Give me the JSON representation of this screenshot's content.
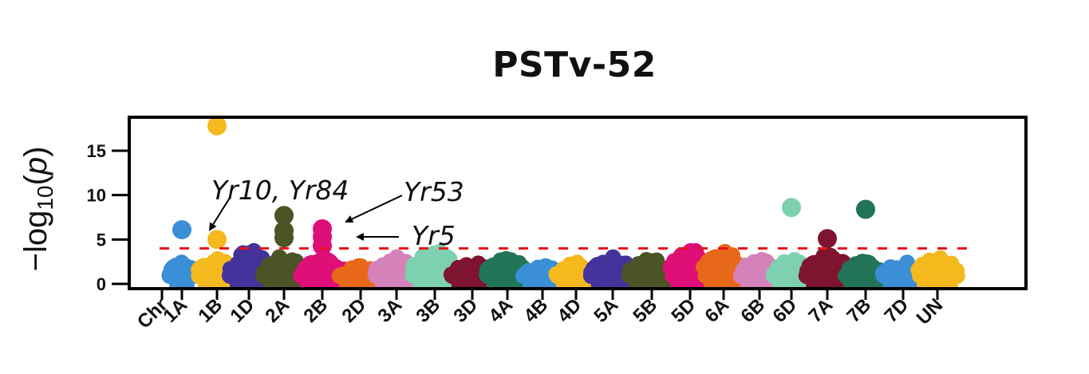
{
  "chart_data": {
    "type": "scatter",
    "subtype": "manhattan",
    "title": "PSTv-52",
    "xlabel": "",
    "ylabel": "-log10(p)",
    "ylim": [
      0,
      18.5
    ],
    "yticks": [
      0,
      5,
      10,
      15
    ],
    "threshold": 4.0,
    "threshold_color": "#e8141c",
    "grid": false,
    "legend": null,
    "x_tick_labels": [
      "Chr",
      "1A",
      "1B",
      "1D",
      "2A",
      "2B",
      "2D",
      "3A",
      "3B",
      "3D",
      "4A",
      "4B",
      "4D",
      "5A",
      "5B",
      "5D",
      "6A",
      "6B",
      "6D",
      "7A",
      "7B",
      "7D",
      "UN"
    ],
    "series": [
      {
        "name": "1A",
        "color": "#3a8fd6",
        "max_bulk": 2.4,
        "outliers": [
          6.1
        ]
      },
      {
        "name": "1B",
        "color": "#f5b91e",
        "max_bulk": 2.8,
        "outliers": [
          5.0,
          17.8
        ]
      },
      {
        "name": "1D",
        "color": "#44339a",
        "max_bulk": 3.7,
        "outliers": []
      },
      {
        "name": "2A",
        "color": "#4a5424",
        "max_bulk": 3.0,
        "outliers": [
          5.2,
          6.0,
          7.7
        ]
      },
      {
        "name": "2B",
        "color": "#df0f78",
        "max_bulk": 2.8,
        "outliers": [
          4.3,
          5.3,
          6.2
        ]
      },
      {
        "name": "2D",
        "color": "#e8681a",
        "max_bulk": 2.0,
        "outliers": []
      },
      {
        "name": "3A",
        "color": "#d582bb",
        "max_bulk": 3.0,
        "outliers": []
      },
      {
        "name": "3B",
        "color": "#7dd1b0",
        "max_bulk": 3.6,
        "outliers": []
      },
      {
        "name": "3D",
        "color": "#7f1430",
        "max_bulk": 2.3,
        "outliers": []
      },
      {
        "name": "4A",
        "color": "#217458",
        "max_bulk": 2.8,
        "outliers": []
      },
      {
        "name": "4B",
        "color": "#3a8fd6",
        "max_bulk": 2.0,
        "outliers": []
      },
      {
        "name": "4D",
        "color": "#f5b91e",
        "max_bulk": 2.4,
        "outliers": []
      },
      {
        "name": "5A",
        "color": "#44339a",
        "max_bulk": 3.0,
        "outliers": []
      },
      {
        "name": "5B",
        "color": "#4a5424",
        "max_bulk": 2.7,
        "outliers": []
      },
      {
        "name": "5D",
        "color": "#df0f78",
        "max_bulk": 3.7,
        "outliers": []
      },
      {
        "name": "6A",
        "color": "#e8681a",
        "max_bulk": 3.6,
        "outliers": []
      },
      {
        "name": "6B",
        "color": "#d582bb",
        "max_bulk": 2.7,
        "outliers": []
      },
      {
        "name": "6D",
        "color": "#7dd1b0",
        "max_bulk": 2.7,
        "outliers": [
          8.6
        ]
      },
      {
        "name": "7A",
        "color": "#7f1430",
        "max_bulk": 3.3,
        "outliers": [
          5.1
        ]
      },
      {
        "name": "7B",
        "color": "#217458",
        "max_bulk": 2.5,
        "outliers": [
          8.4
        ]
      },
      {
        "name": "7D",
        "color": "#3a8fd6",
        "max_bulk": 2.4,
        "outliers": []
      },
      {
        "name": "UN",
        "color": "#f5b91e",
        "max_bulk": 2.9,
        "outliers": []
      }
    ],
    "annotations": [
      {
        "text": "Yr10, Yr84",
        "target_chr": "1B",
        "target_y": 5.0
      },
      {
        "text": "Yr53",
        "target_chr": "2B",
        "target_y": 6.2
      },
      {
        "text": "Yr5",
        "target_chr": "2B",
        "target_y": 5.3
      }
    ]
  }
}
